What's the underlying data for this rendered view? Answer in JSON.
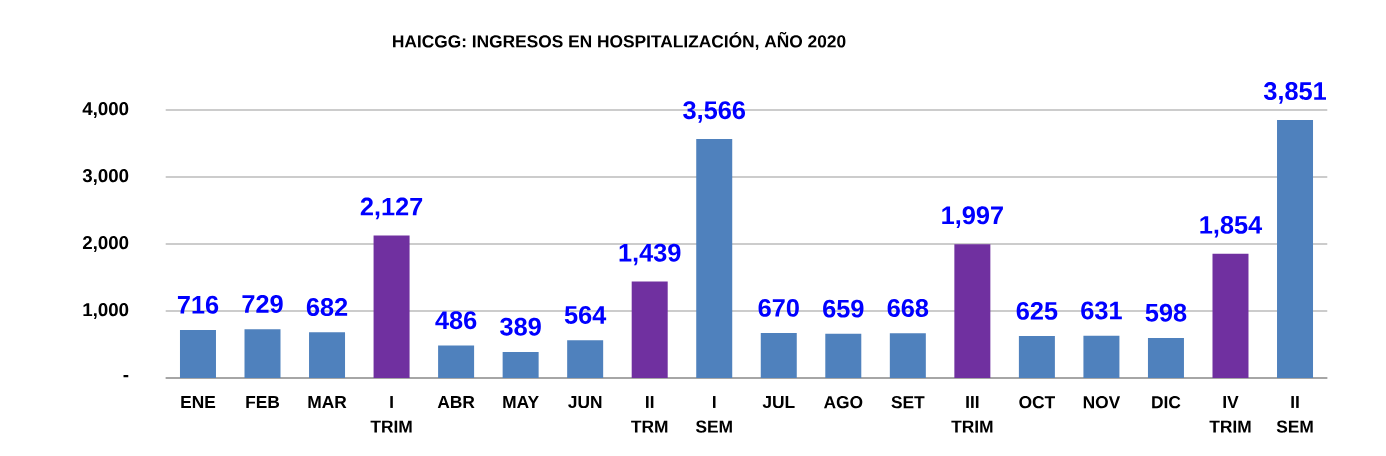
{
  "chart_data": {
    "type": "bar",
    "title": "HAICGG: INGRESOS EN HOSPITALIZACIÓN, AÑO 2020",
    "categories": [
      "ENE",
      "FEB",
      "MAR",
      "I TRIM",
      "ABR",
      "MAY",
      "JUN",
      "II TRM",
      "I SEM",
      "JUL",
      "AGO",
      "SET",
      "III TRIM",
      "OCT",
      "NOV",
      "DIC",
      "IV TRIM",
      "II SEM"
    ],
    "values": [
      716,
      729,
      682,
      2127,
      486,
      389,
      564,
      1439,
      3566,
      670,
      659,
      668,
      1997,
      625,
      631,
      598,
      1854,
      3851
    ],
    "colors": [
      "#4f81bd",
      "#4f81bd",
      "#4f81bd",
      "#7030a0",
      "#4f81bd",
      "#4f81bd",
      "#4f81bd",
      "#7030a0",
      "#4f81bd",
      "#4f81bd",
      "#4f81bd",
      "#4f81bd",
      "#7030a0",
      "#4f81bd",
      "#4f81bd",
      "#4f81bd",
      "#7030a0",
      "#4f81bd"
    ],
    "value_labels": [
      "716",
      "729",
      "682",
      "2,127",
      "486",
      "389",
      "564",
      "1,439",
      "3,566",
      "670",
      "659",
      "668",
      "1,997",
      "625",
      "631",
      "598",
      "1,854",
      "3,851"
    ],
    "ylim": [
      0,
      4000
    ],
    "yticks": [
      {
        "value": 0,
        "label": "-"
      },
      {
        "value": 1000,
        "label": "1,000"
      },
      {
        "value": 2000,
        "label": "2,000"
      },
      {
        "value": 3000,
        "label": "3,000"
      },
      {
        "value": 4000,
        "label": "4,000"
      }
    ],
    "grid": "y"
  }
}
